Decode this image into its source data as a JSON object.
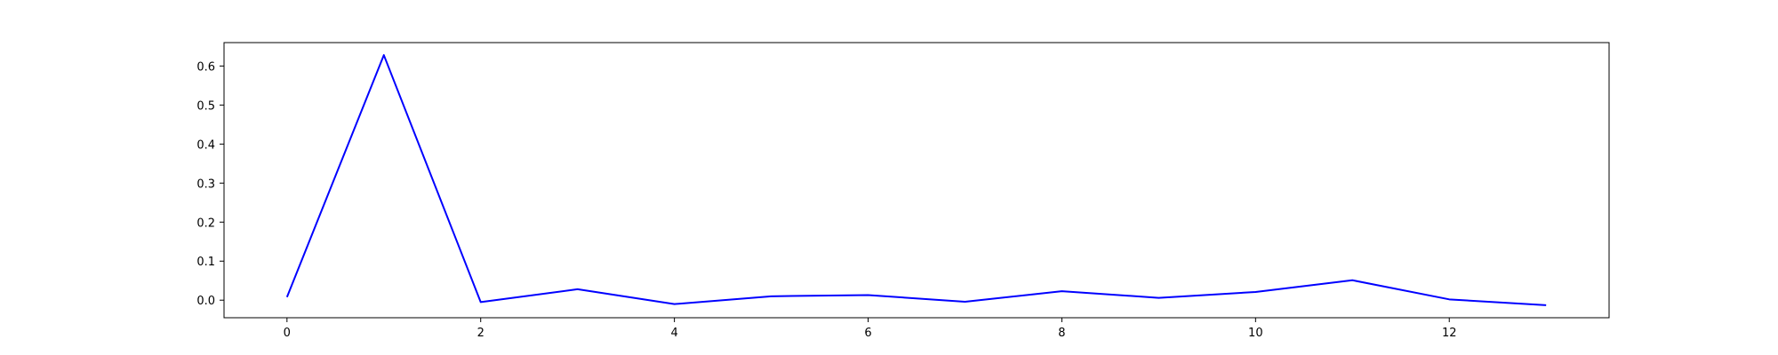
{
  "chart_data": {
    "type": "line",
    "title": "",
    "xlabel": "",
    "ylabel": "",
    "x": [
      0,
      1,
      2,
      3,
      4,
      5,
      6,
      7,
      8,
      9,
      10,
      11,
      12,
      13
    ],
    "series": [
      {
        "color": "#0000ff",
        "values": [
          0.008,
          0.628,
          -0.005,
          0.028,
          -0.01,
          0.01,
          0.013,
          -0.004,
          0.023,
          0.006,
          0.021,
          0.051,
          0.002,
          -0.013
        ]
      }
    ],
    "xlim": [
      -0.65,
      13.65
    ],
    "ylim": [
      -0.045,
      0.66
    ],
    "xticks": [
      0,
      2,
      4,
      6,
      8,
      10,
      12
    ],
    "xtick_labels": [
      "0",
      "2",
      "4",
      "6",
      "8",
      "10",
      "12"
    ],
    "yticks": [
      0.0,
      0.1,
      0.2,
      0.3,
      0.4,
      0.5,
      0.6
    ],
    "ytick_labels": [
      "0.0",
      "0.1",
      "0.2",
      "0.3",
      "0.4",
      "0.5",
      "0.6"
    ],
    "grid": false,
    "legend": "none"
  }
}
